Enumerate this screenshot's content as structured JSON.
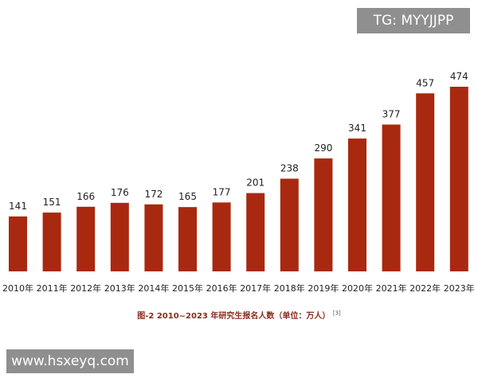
{
  "watermark_top": "TG: MYYJJPP",
  "watermark_bottom": "www.hsxeyq.com",
  "caption": "图-2 2010~2023 年研究生报名人数（单位：万人）",
  "caption_ref": "[3]",
  "colors": {
    "bar": "#a8290f",
    "caption": "#8a2a1e",
    "badge": "#8f8f8f"
  },
  "chart_data": {
    "type": "bar",
    "categories": [
      "2010年",
      "2011年",
      "2012年",
      "2013年",
      "2014年",
      "2015年",
      "2016年",
      "2017年",
      "2018年",
      "2019年",
      "2020年",
      "2021年",
      "2022年",
      "2023年"
    ],
    "values": [
      141,
      151,
      166,
      176,
      172,
      165,
      177,
      201,
      238,
      290,
      341,
      377,
      457,
      474
    ],
    "unit": "万人",
    "ylim": [
      0,
      500
    ]
  }
}
